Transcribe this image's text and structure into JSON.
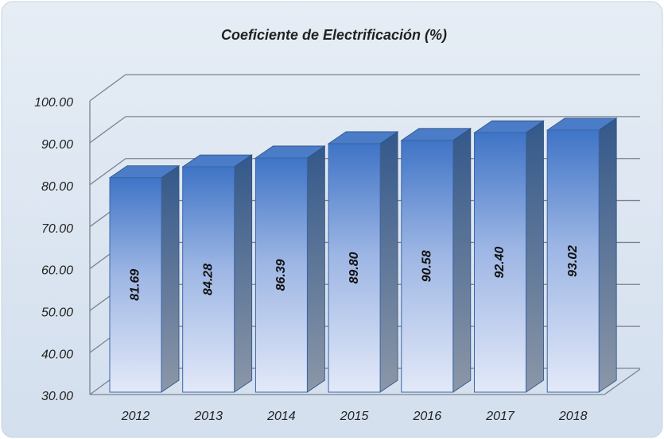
{
  "chart_data": {
    "type": "bar",
    "title": "Coeficiente de Electrificación (%)",
    "categories": [
      "2012",
      "2013",
      "2014",
      "2015",
      "2016",
      "2017",
      "2018"
    ],
    "values": [
      81.69,
      84.28,
      86.39,
      89.8,
      90.58,
      92.4,
      93.02
    ],
    "value_labels": [
      "81.69",
      "84.28",
      "86.39",
      "89.80",
      "90.58",
      "92.40",
      "93.02"
    ],
    "color": "#3f74c6",
    "ylim": [
      30,
      100
    ],
    "yticks": [
      {
        "value": 30,
        "label": "30.00"
      },
      {
        "value": 40,
        "label": "40.00"
      },
      {
        "value": 50,
        "label": "50.00"
      },
      {
        "value": 60,
        "label": "60.00"
      },
      {
        "value": 70,
        "label": "70.00"
      },
      {
        "value": 80,
        "label": "80.00"
      },
      {
        "value": 90,
        "label": "90.00"
      },
      {
        "value": 100,
        "label": "100.00"
      }
    ],
    "grid": true
  }
}
